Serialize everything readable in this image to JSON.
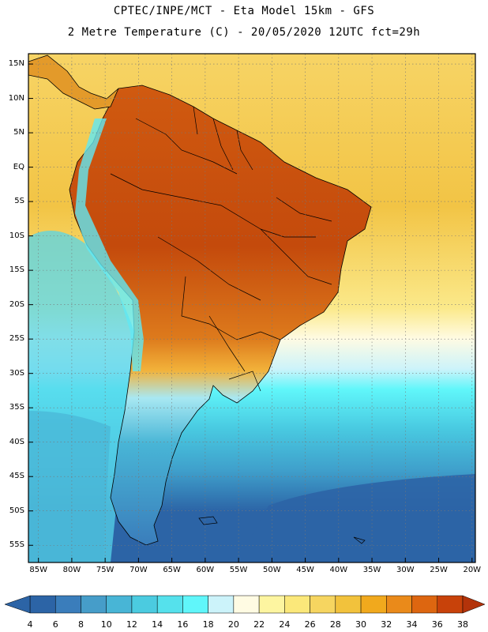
{
  "header": {
    "line1": "CPTEC/INPE/MCT -  Eta Model 15km - GFS",
    "line2": "2 Metre Temperature (C) - 20/05/2020 12UTC fct=29h"
  },
  "map": {
    "lat_labels": [
      "15N",
      "10N",
      "5N",
      "EQ",
      "5S",
      "10S",
      "15S",
      "20S",
      "25S",
      "30S",
      "35S",
      "40S",
      "45S",
      "50S",
      "55S"
    ],
    "lon_labels": [
      "85W",
      "80W",
      "75W",
      "70W",
      "65W",
      "60W",
      "55W",
      "50W",
      "45W",
      "40W",
      "35W",
      "30W",
      "25W",
      "20W"
    ],
    "lat_values": [
      15,
      10,
      5,
      0,
      -5,
      -10,
      -15,
      -20,
      -25,
      -30,
      -35,
      -40,
      -45,
      -50,
      -55
    ],
    "lon_values": [
      -85,
      -80,
      -75,
      -70,
      -65,
      -60,
      -55,
      -50,
      -45,
      -40,
      -35,
      -30,
      -25,
      -20
    ],
    "extent": {
      "lon_min": -86.5,
      "lon_max": -19.5,
      "lat_min": -57.5,
      "lat_max": 16.5
    }
  },
  "colorbar": {
    "labels": [
      "4",
      "6",
      "8",
      "10",
      "12",
      "14",
      "16",
      "18",
      "20",
      "22",
      "24",
      "26",
      "28",
      "30",
      "32",
      "34",
      "36",
      "38"
    ],
    "colors": [
      "#2c64a6",
      "#3a7dbb",
      "#469dc9",
      "#48b5d6",
      "#4bcbe0",
      "#55e1ec",
      "#60f6fa",
      "#ccf3fa",
      "#fffbe3",
      "#fdf5a0",
      "#fbe87a",
      "#f6d560",
      "#f2c23c",
      "#f1a91d",
      "#ea8a1a",
      "#dd6610",
      "#c8420a",
      "#b3330a"
    ],
    "low_color": "#2c64a6",
    "high_color": "#b3330a"
  },
  "styles": {
    "ocean_north": "#f4cb52",
    "ocean_mid": "#fbe98a",
    "ocean_south": "#2c64a6",
    "land_hot": "#c8520d",
    "border_color": "#000000"
  }
}
